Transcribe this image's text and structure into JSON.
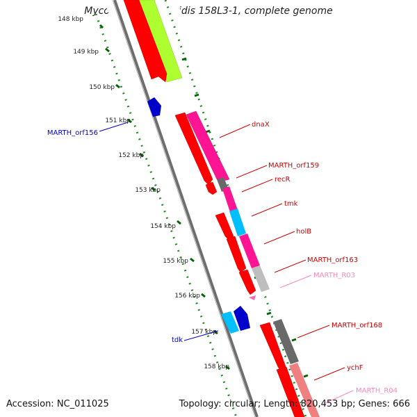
{
  "title": "Mycoplasma arthritidis 158L3-1, complete genome",
  "accession": "Accession: NC_011025",
  "topology": "Topology: circular; Length: 820,453 bp; Genes: 666",
  "ticks": [
    "148 kbp",
    "149 kbp",
    "150 kbp",
    "151 kbp",
    "152 kbp",
    "153 kbp",
    "154 kbp",
    "155 kbp",
    "156 kbp",
    "157 kbp",
    "158 kbp"
  ],
  "labels": {
    "dnaX": "dnaX",
    "MARTH_orf159": "MARTH_orf159",
    "recR": "recR",
    "tmk": "tmk",
    "holB": "holB",
    "MARTH_orf163": "MARTH_orf163",
    "MARTH_R03": "MARTH_R03",
    "MARTH_orf168": "MARTH_orf168",
    "ychF": "ychF",
    "MARTH_R04": "MARTH_R04",
    "MARTH_orf156": "MARTH_orf156",
    "tdk": "tdk"
  },
  "colors": {
    "cds": "#ff0000",
    "cog_magenta": "#ff1493",
    "cog_lime": "#adff2f",
    "cog_cyan": "#00bfff",
    "cog_gray": "#696969",
    "cog_silver": "#bebebe",
    "cog_salmon": "#f08080",
    "minus_strand": "#0000cd",
    "rna": "#ff69b4",
    "tick": "#006400",
    "backbone": "#808080",
    "label_red": "#cc0000",
    "label_blue": "#0000cc",
    "label_pink": "#ff88bb"
  }
}
